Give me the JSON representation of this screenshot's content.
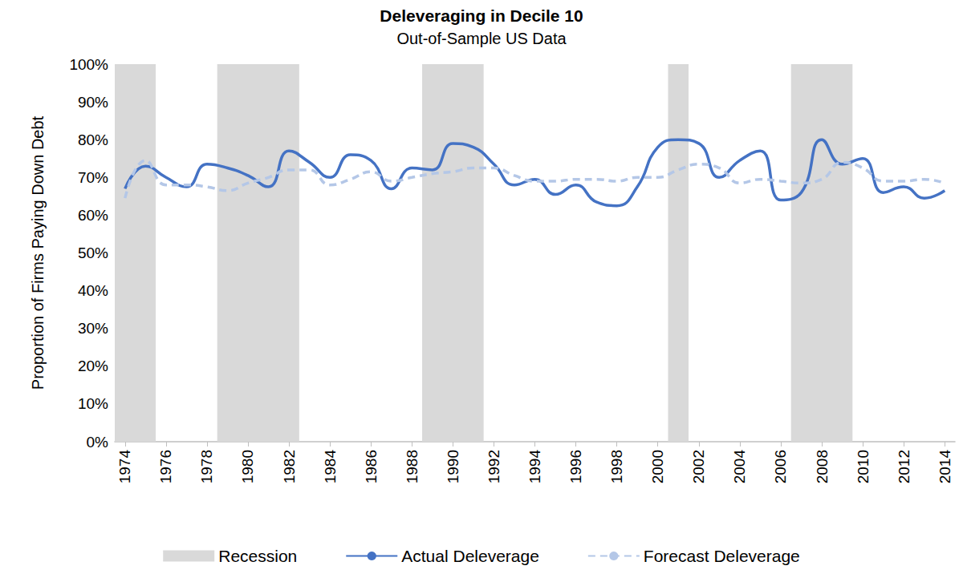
{
  "chart_data": {
    "type": "line",
    "title": "Deleveraging in Decile 10",
    "subtitle": "Out-of-Sample US Data",
    "y_label": "Proportion of Firms Paying Down Debt",
    "x": [
      1974,
      1975,
      1976,
      1977,
      1978,
      1979,
      1980,
      1981,
      1982,
      1983,
      1984,
      1985,
      1986,
      1987,
      1988,
      1989,
      1990,
      1991,
      1992,
      1993,
      1994,
      1995,
      1996,
      1997,
      1998,
      1999,
      2000,
      2001,
      2002,
      2003,
      2004,
      2005,
      2006,
      2007,
      2008,
      2009,
      2010,
      2011,
      2012,
      2013,
      2014
    ],
    "xlim": [
      1973.5,
      2014.5
    ],
    "xticks": [
      1974,
      1976,
      1978,
      1980,
      1982,
      1984,
      1986,
      1988,
      1990,
      1992,
      1994,
      1996,
      1998,
      2000,
      2002,
      2004,
      2006,
      2008,
      2010,
      2012,
      2014
    ],
    "ylim": [
      0,
      100
    ],
    "yticks": [
      {
        "value": 0,
        "label": "0%"
      },
      {
        "value": 10,
        "label": "10%"
      },
      {
        "value": 20,
        "label": "20%"
      },
      {
        "value": 30,
        "label": "30%"
      },
      {
        "value": 40,
        "label": "40%"
      },
      {
        "value": 50,
        "label": "50%"
      },
      {
        "value": 60,
        "label": "60%"
      },
      {
        "value": 70,
        "label": "70%"
      },
      {
        "value": 80,
        "label": "80%"
      },
      {
        "value": 90,
        "label": "90%"
      },
      {
        "value": 100,
        "label": "100%"
      }
    ],
    "grid": false,
    "legend": "bottom",
    "recessions": {
      "name": "Recession",
      "color": "#d9d9d9",
      "spans": [
        [
          1973.5,
          1975.5
        ],
        [
          1978.5,
          1982.5
        ],
        [
          1988.5,
          1991.5
        ],
        [
          2000.5,
          2001.5
        ],
        [
          2006.5,
          2009.5
        ]
      ]
    },
    "series": [
      {
        "name": "Actual Deleverage",
        "color": "#4472c4",
        "line_style": "solid",
        "values": [
          67,
          73,
          70,
          67.5,
          73.5,
          72.5,
          70.5,
          67.5,
          77,
          74,
          70,
          76,
          74.5,
          67,
          72.5,
          72,
          79,
          78,
          73.5,
          68,
          69.5,
          65.5,
          68,
          63.5,
          62.5,
          67.5,
          78,
          80,
          79,
          70,
          74.5,
          77,
          64,
          66,
          80,
          73.5,
          75,
          66,
          67.5,
          64.5,
          66.5
        ]
      },
      {
        "name": "Forecast Deleverage",
        "color": "#b4c7e7",
        "line_style": "dashed",
        "values": [
          64.5,
          74.5,
          68,
          68,
          67.5,
          66.5,
          68.5,
          70,
          72,
          72,
          68,
          69.5,
          71.5,
          69,
          70,
          71,
          71.5,
          72.5,
          72.5,
          70.5,
          69,
          69,
          69.5,
          69.5,
          69,
          70,
          70,
          72,
          73.5,
          72.5,
          68.5,
          69.5,
          69,
          68.5,
          69.5,
          74,
          72.5,
          69,
          69,
          69.5,
          68.5
        ]
      }
    ]
  }
}
